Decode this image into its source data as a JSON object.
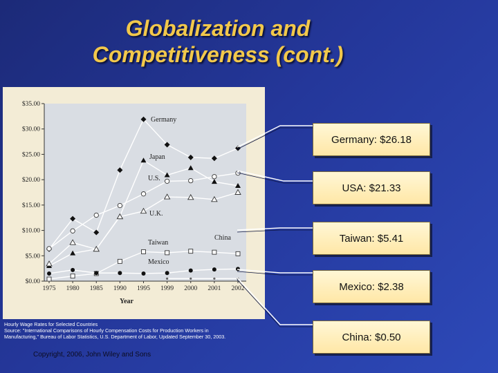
{
  "slide": {
    "title_line1": "Globalization and",
    "title_line2": "Competitiveness (cont.)"
  },
  "callouts": [
    {
      "text": "Germany: $26.18"
    },
    {
      "text": "USA: $21.33"
    },
    {
      "text": "Taiwan: $5.41"
    },
    {
      "text": "Mexico: $2.38"
    },
    {
      "text": "China: $0.50"
    }
  ],
  "source": {
    "line1": "Hourly Wage Rates for Selected Countries",
    "line2": "Source: \"International Comparisons of Hourly Compensation Costs for Production Workers in",
    "line3": "Manufacturing,\" Bureau of Labor Statistics, U.S. Department of Labor, Updated September 30, 2003."
  },
  "copyright": "Copyright, 2006, John Wiley and Sons",
  "colors": {
    "title": "#f2c84b",
    "plot_bg": "#d9dde3",
    "panel_bg": "#f3ecd6"
  },
  "chart_data": {
    "type": "line",
    "xlabel": "Year",
    "categories": [
      "1975",
      "1980",
      "1985",
      "1990",
      "1995",
      "1999",
      "2000",
      "2001",
      "2002"
    ],
    "ylim": [
      0,
      35
    ],
    "yticks": [
      "$0.00",
      "$5.00",
      "$10.00",
      "$15.00",
      "$20.00",
      "$25.00",
      "$30.00",
      "$35.00"
    ],
    "grid": false,
    "series": [
      {
        "name": "Germany",
        "marker": "diamond",
        "values": [
          6.3,
          12.3,
          9.6,
          21.9,
          31.9,
          26.9,
          24.4,
          24.2,
          26.2
        ]
      },
      {
        "name": "Japan",
        "marker": "triangle",
        "values": [
          3.0,
          5.5,
          6.3,
          12.8,
          23.8,
          20.9,
          22.3,
          19.6,
          18.8
        ]
      },
      {
        "name": "U.S.",
        "marker": "circle-open",
        "values": [
          6.4,
          9.9,
          13.0,
          14.9,
          17.2,
          19.7,
          19.8,
          20.6,
          21.3
        ]
      },
      {
        "name": "U.K.",
        "marker": "triangle-open",
        "values": [
          3.4,
          7.6,
          6.3,
          12.7,
          13.8,
          16.6,
          16.5,
          16.1,
          17.5
        ]
      },
      {
        "name": "Taiwan",
        "marker": "square-open",
        "values": [
          0.4,
          1.0,
          1.5,
          3.9,
          5.8,
          5.6,
          5.9,
          5.7,
          5.4
        ]
      },
      {
        "name": "Mexico",
        "marker": "circle",
        "values": [
          1.5,
          2.2,
          1.6,
          1.6,
          1.5,
          1.6,
          2.1,
          2.3,
          2.4
        ]
      },
      {
        "name": "China",
        "marker": "none",
        "values": [
          null,
          null,
          null,
          null,
          null,
          0.5,
          0.5,
          0.5,
          0.5
        ]
      }
    ],
    "annotations": [
      "Germany",
      "Japan",
      "U.S.",
      "U.K.",
      "Taiwan",
      "Mexico",
      "China"
    ]
  }
}
